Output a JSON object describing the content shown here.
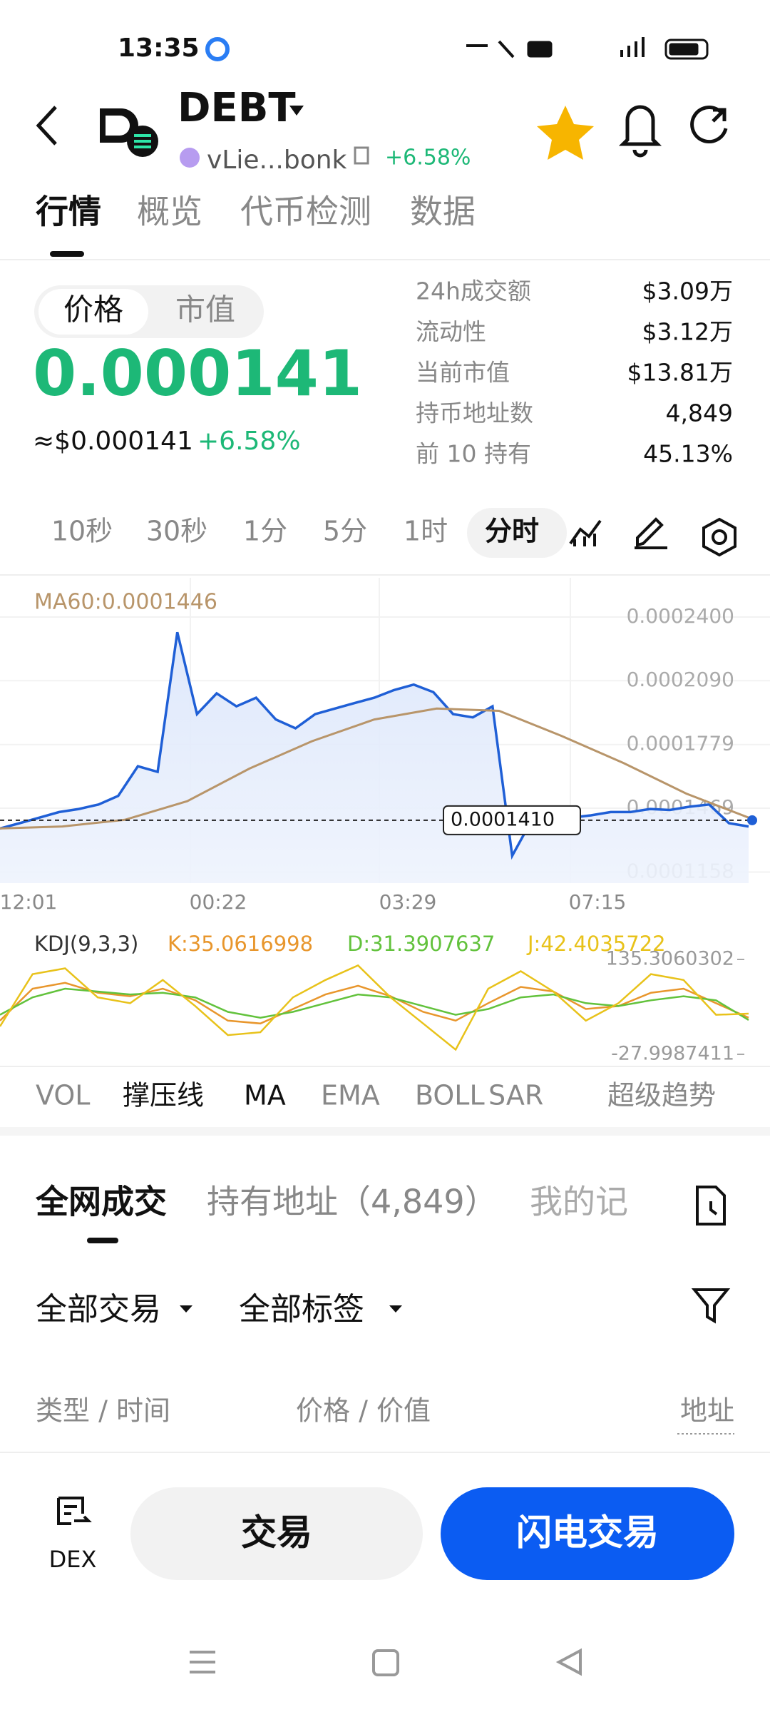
{
  "status_bar": {
    "time": "13:35"
  },
  "header": {
    "symbol": "DEBT",
    "address": "vLie...bonk",
    "change": "+6.58%"
  },
  "tabs": [
    "行情",
    "概览",
    "代币检测",
    "数据"
  ],
  "price_panel": {
    "toggle": [
      "价格",
      "市值"
    ],
    "price": "0.000141",
    "usd_price": "≈$0.000141",
    "change": "+6.58%"
  },
  "stats": [
    {
      "label": "24h成交额",
      "value": "$3.09万"
    },
    {
      "label": "流动性",
      "value": "$3.12万"
    },
    {
      "label": "当前市值",
      "value": "$13.81万"
    },
    {
      "label": "持币地址数",
      "value": "4,849"
    },
    {
      "label": "前 10 持有",
      "value": "45.13%"
    }
  ],
  "intervals": [
    "10秒",
    "30秒",
    "1分",
    "5分",
    "1时",
    "分时"
  ],
  "chart_data": [
    {
      "type": "line",
      "annotation": "MA60:0.0001446",
      "ylim": [
        0.0001104,
        0.0002591
      ],
      "yticks": [
        {
          "value": 0.00024,
          "label": "0.0002400"
        },
        {
          "value": 0.000209,
          "label": "0.0002090"
        },
        {
          "value": 0.0001779,
          "label": "0.0001779"
        },
        {
          "value": 0.0001469,
          "label": "0.0001469"
        },
        {
          "value": 0.0001158,
          "label": "0.0001158"
        }
      ],
      "xticks": [
        "12:01",
        "00:22",
        "03:29",
        "07:15"
      ],
      "current_price": {
        "value": 0.000141,
        "label": "0.0001410"
      },
      "series": [
        {
          "color": "#1f5fd6",
          "values": [
            0.000137,
            0.0001396,
            0.0001423,
            0.000145,
            0.0001465,
            0.0001487,
            0.0001529,
            0.0001673,
            0.0001646,
            0.0002326,
            0.0001927,
            0.0002028,
            0.0001965,
            0.0002007,
            0.0001901,
            0.0001858,
            0.0001927,
            0.0001954,
            0.0001981,
            0.0002007,
            0.0002044,
            0.0002071,
            0.0002034,
            0.0001927,
            0.0001911,
            0.0001965,
            0.0001237,
            0.0001412,
            0.0001412,
            0.0001423,
            0.0001434,
            0.000145,
            0.000145,
            0.0001465,
            0.000146,
            0.0001476,
            0.0001487,
            0.0001396,
            0.000138
          ]
        },
        {
          "color": "#b8956a",
          "values": [
            0.000137,
            0.000138,
            0.0001412,
            0.0001503,
            0.0001662,
            0.0001795,
            0.0001901,
            0.0001954,
            0.0001943,
            0.0001821,
            0.0001688,
            0.000154,
            0.0001423
          ]
        }
      ]
    },
    {
      "type": "line",
      "title": "KDJ(9,3,3)",
      "ylim": [
        -27.9987411,
        135.3060302
      ],
      "yticks": [
        135.3060302,
        -27.9987411
      ],
      "series": [
        {
          "name": "K:35.0616998",
          "color": "#e8962c",
          "values": [
            30,
            85,
            95,
            78,
            72,
            85,
            65,
            30,
            25,
            50,
            75,
            90,
            72,
            45,
            30,
            60,
            88,
            80,
            50,
            55,
            78,
            85,
            60,
            35
          ]
        },
        {
          "name": "D:31.3907637",
          "color": "#62c23c",
          "values": [
            40,
            70,
            85,
            80,
            75,
            78,
            70,
            45,
            35,
            45,
            60,
            75,
            70,
            55,
            40,
            50,
            70,
            75,
            60,
            55,
            65,
            72,
            65,
            31
          ]
        },
        {
          "name": "J:42.4035722",
          "color": "#e8c21a",
          "values": [
            20,
            110,
            120,
            70,
            60,
            100,
            55,
            5,
            10,
            70,
            100,
            125,
            70,
            25,
            -20,
            85,
            115,
            80,
            30,
            60,
            110,
            100,
            40,
            42
          ]
        }
      ]
    }
  ],
  "indicators": [
    "VOL",
    "撑压线",
    "MA",
    "EMA",
    "BOLL",
    "SAR",
    "超级趋势"
  ],
  "trade_tabs": [
    "全网成交",
    "持有地址（4,849）",
    "我的记"
  ],
  "filters": [
    "全部交易",
    "全部标签"
  ],
  "columns": [
    "类型 / 时间",
    "价格 / 价值",
    "地址"
  ],
  "bottom_bar": {
    "dex": "DEX",
    "trade": "交易",
    "flash_trade": "闪电交易"
  }
}
